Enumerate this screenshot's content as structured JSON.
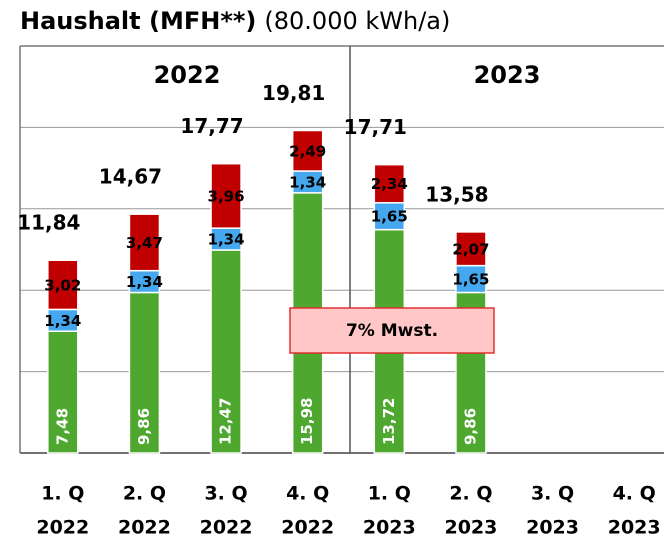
{
  "chart_data": {
    "type": "stacked-bar",
    "title": "Haushalt (MFH**)",
    "subtitle": "(80.000 kWh/a)",
    "year_labels": [
      "2022",
      "2023"
    ],
    "annotation": "7% Mwst.",
    "categories": [
      [
        "1. Q",
        "2022"
      ],
      [
        "2. Q",
        "2022"
      ],
      [
        "3. Q",
        "2022"
      ],
      [
        "4. Q",
        "2022"
      ],
      [
        "1. Q",
        "2023"
      ],
      [
        "2. Q",
        "2023"
      ],
      [
        "3. Q",
        "2023"
      ],
      [
        "4. Q",
        "2023"
      ]
    ],
    "series": [
      {
        "color": "#4ea72e",
        "values": [
          7.48,
          9.86,
          12.47,
          15.98,
          13.72,
          9.86,
          null,
          null
        ],
        "value_labels": [
          "7,48",
          "9,86",
          "12,47",
          "15,98",
          "13,72",
          "9,86",
          null,
          null
        ]
      },
      {
        "color": "#45a8ee",
        "values": [
          1.34,
          1.34,
          1.34,
          1.34,
          1.65,
          1.65,
          null,
          null
        ],
        "value_labels": [
          "1,34",
          "1,34",
          "1,34",
          "1,34",
          "1,65",
          "1,65",
          null,
          null
        ]
      },
      {
        "color": "#c00000",
        "values": [
          3.02,
          3.47,
          3.96,
          2.49,
          2.34,
          2.07,
          null,
          null
        ],
        "value_labels": [
          "3,02",
          "3,47",
          "3,96",
          "2,49",
          "2,34",
          "2,07",
          null,
          null
        ]
      }
    ],
    "totals": {
      "values": [
        11.84,
        14.67,
        17.77,
        19.81,
        17.71,
        13.58,
        null,
        null
      ],
      "value_labels": [
        "11,84",
        "14,67",
        "17,77",
        "19,81",
        "17,71",
        "13,58",
        null,
        null
      ]
    },
    "ylim": [
      0,
      25
    ],
    "yticks": [
      0,
      5,
      10,
      15,
      20
    ],
    "grid": true
  }
}
